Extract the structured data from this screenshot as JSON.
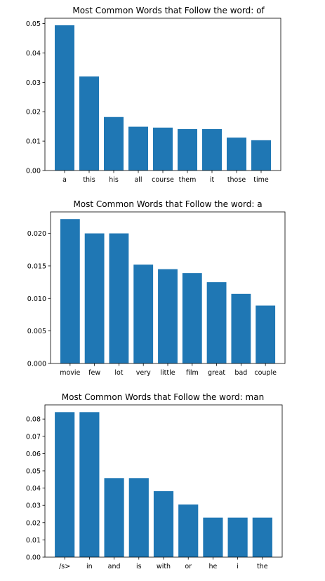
{
  "chart_data": [
    {
      "type": "bar",
      "title": "Most Common Words that Follow the word: of",
      "xlabel": "",
      "ylabel": "",
      "categories": [
        "a",
        "this",
        "his",
        "all",
        "course",
        "them",
        "it",
        "those",
        "time"
      ],
      "values": [
        0.0494,
        0.032,
        0.0182,
        0.0149,
        0.0146,
        0.0141,
        0.0141,
        0.0112,
        0.0103
      ],
      "ylim": [
        0,
        0.0518
      ],
      "yticks": [
        0.0,
        0.01,
        0.02,
        0.03,
        0.04,
        0.05
      ],
      "ytick_labels": [
        "0.00",
        "0.01",
        "0.02",
        "0.03",
        "0.04",
        "0.05"
      ],
      "bar_color": "#1f77b4",
      "grid": false
    },
    {
      "type": "bar",
      "title": "Most Common Words that Follow the word: a",
      "xlabel": "",
      "ylabel": "",
      "categories": [
        "movie",
        "few",
        "lot",
        "very",
        "little",
        "film",
        "great",
        "bad",
        "couple"
      ],
      "values": [
        0.0222,
        0.02,
        0.02,
        0.0152,
        0.0145,
        0.0139,
        0.0125,
        0.0107,
        0.0089
      ],
      "ylim": [
        0,
        0.0233
      ],
      "yticks": [
        0.0,
        0.005,
        0.01,
        0.015,
        0.02
      ],
      "ytick_labels": [
        "0.000",
        "0.005",
        "0.010",
        "0.015",
        "0.020"
      ],
      "bar_color": "#1f77b4",
      "grid": false
    },
    {
      "type": "bar",
      "title": "Most Common Words that Follow the word: man",
      "xlabel": "",
      "ylabel": "",
      "categories": [
        "/s>",
        "in",
        "and",
        "is",
        "with",
        "or",
        "he",
        "i",
        "the"
      ],
      "values": [
        0.084,
        0.084,
        0.0458,
        0.0458,
        0.0382,
        0.0305,
        0.0229,
        0.0229,
        0.0229
      ],
      "ylim": [
        0,
        0.0882
      ],
      "yticks": [
        0.0,
        0.01,
        0.02,
        0.03,
        0.04,
        0.05,
        0.06,
        0.07,
        0.08
      ],
      "ytick_labels": [
        "0.00",
        "0.01",
        "0.02",
        "0.03",
        "0.04",
        "0.05",
        "0.06",
        "0.07",
        "0.08"
      ],
      "bar_color": "#1f77b4",
      "grid": false
    }
  ]
}
